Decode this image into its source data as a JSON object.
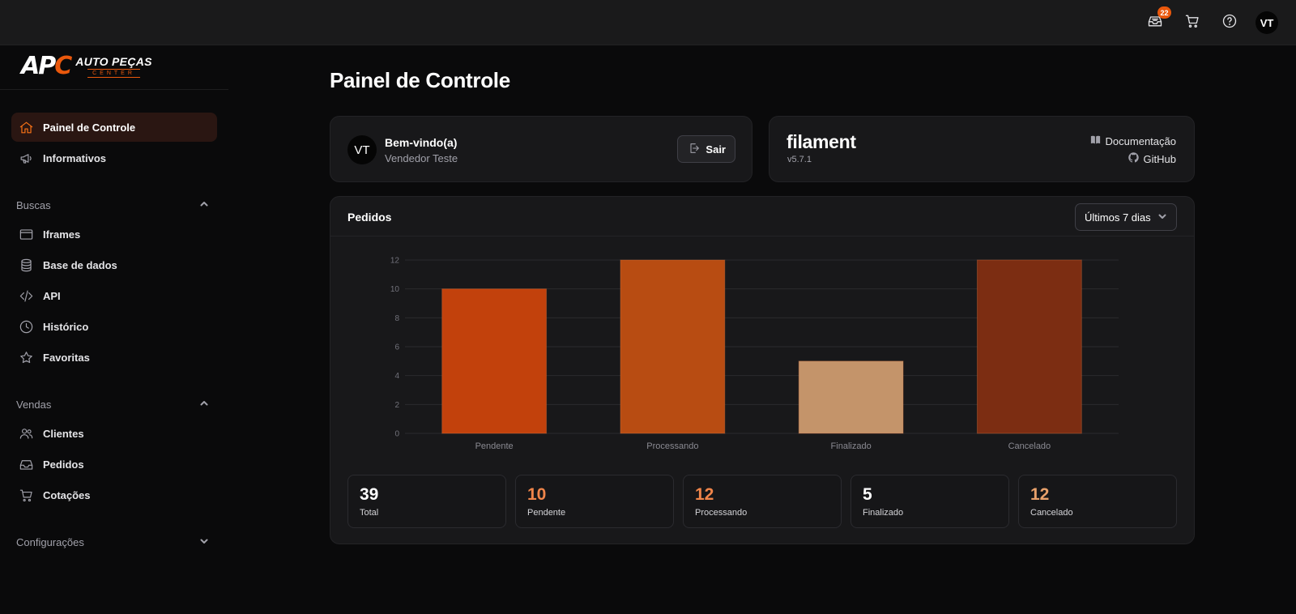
{
  "topbar": {
    "notification_count": "22",
    "icons": [
      "inbox-icon",
      "cart-icon",
      "help-icon"
    ],
    "avatar_initials": "VT"
  },
  "brand": {
    "mark_part1": "AP",
    "mark_part2": "C",
    "line1": "AUTO PEÇAS",
    "line2": "CENTER",
    "accent_color": "#ea580c"
  },
  "sidebar": {
    "top_items": [
      {
        "label": "Painel de Controle",
        "icon": "home-icon",
        "active": true
      },
      {
        "label": "Informativos",
        "icon": "megaphone-icon",
        "active": false
      }
    ],
    "groups": [
      {
        "label": "Buscas",
        "expanded": true,
        "items": [
          {
            "label": "Iframes",
            "icon": "window-icon"
          },
          {
            "label": "Base de dados",
            "icon": "database-icon"
          },
          {
            "label": "API",
            "icon": "code-icon"
          },
          {
            "label": "Histórico",
            "icon": "clock-icon"
          },
          {
            "label": "Favoritas",
            "icon": "star-icon"
          }
        ]
      },
      {
        "label": "Vendas",
        "expanded": true,
        "items": [
          {
            "label": "Clientes",
            "icon": "users-icon"
          },
          {
            "label": "Pedidos",
            "icon": "inbox-icon"
          },
          {
            "label": "Cotações",
            "icon": "cart-icon"
          }
        ]
      },
      {
        "label": "Configurações",
        "expanded": false,
        "items": []
      }
    ]
  },
  "main": {
    "title": "Painel de Controle",
    "welcome": {
      "avatar_initials": "VT",
      "title": "Bem-vindo(a)",
      "user_name": "Vendedor Teste",
      "logout_label": "Sair"
    },
    "filament": {
      "logo_text": "filament",
      "version": "v5.7.1",
      "docs_label": "Documentação",
      "github_label": "GitHub"
    },
    "orders": {
      "title": "Pedidos",
      "period_selected": "Últimos 7 dias",
      "stats": [
        {
          "value": "39",
          "label": "Total",
          "color": "#ffffff"
        },
        {
          "value": "10",
          "label": "Pendente",
          "color": "#f0854a"
        },
        {
          "value": "12",
          "label": "Processando",
          "color": "#f0854a"
        },
        {
          "value": "5",
          "label": "Finalizado",
          "color": "#ffffff"
        },
        {
          "value": "12",
          "label": "Cancelado",
          "color": "#e8a16b"
        }
      ]
    }
  },
  "chart_data": {
    "type": "bar",
    "categories": [
      "Pendente",
      "Processando",
      "Finalizado",
      "Cancelado"
    ],
    "values": [
      10,
      12,
      5,
      12
    ],
    "colors": [
      "#c2410c",
      "#b84c12",
      "#c4946a",
      "#7c2d12"
    ],
    "ylim": [
      0,
      12
    ],
    "yticks": [
      0,
      2,
      4,
      6,
      8,
      10,
      12
    ],
    "grid": true,
    "title": "",
    "xlabel": "",
    "ylabel": ""
  }
}
